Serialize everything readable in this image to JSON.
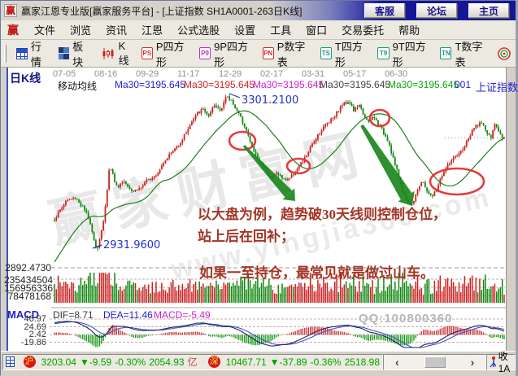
{
  "window": {
    "icon": "赢",
    "title": "赢家江恩专业版[赢家服务平台] - [上证指数  SH1A0001-263日K线]",
    "buttons": [
      "客服",
      "论坛",
      "主页"
    ]
  },
  "menu": {
    "logo": "赢",
    "items": [
      "文件",
      "浏览",
      "资讯",
      "江恩",
      "公式选股",
      "设置",
      "工具",
      "窗口",
      "交易委托",
      "帮助"
    ]
  },
  "toolbar": {
    "items": [
      {
        "icon": "quote-grid",
        "label": "行情"
      },
      {
        "icon": "blocks",
        "label": "板块"
      },
      {
        "icon": "kline",
        "label": "K线"
      },
      {
        "icon": "PS",
        "label": "P四方形",
        "color": "#d03030"
      },
      {
        "icon": "P9",
        "label": "9P四方形",
        "color": "#c030c0"
      },
      {
        "icon": "PN",
        "label": "P数字表",
        "color": "#d03030"
      },
      {
        "icon": "TS",
        "label": "T四方形",
        "color": "#1a9a80"
      },
      {
        "icon": "T9",
        "label": "9T四方形",
        "color": "#1a9a80"
      },
      {
        "icon": "TN",
        "label": "T数字表",
        "color": "#1a9a80"
      }
    ]
  },
  "chart": {
    "panel_label": "日K线",
    "dates": [
      "07-05",
      "08-16",
      "09-29",
      "11-17",
      "12-29",
      "02-17",
      "03-31",
      "05-17",
      "06-30"
    ],
    "ma_row": {
      "label": "移动均线",
      "entries": [
        {
          "text": "Ma30=3195.645",
          "color": "#2222cc"
        },
        {
          "text": "Ma30=3195.645",
          "color": "#cc2222"
        },
        {
          "text": "Ma30=3195.645",
          "color": "#cc22cc"
        },
        {
          "text": "Ma30=3195.645",
          "color": "#444444"
        },
        {
          "text": "Ma30=3195.645",
          "color": "#11a011"
        }
      ],
      "suffix": "001",
      "symbol": "上证指数"
    },
    "labels": {
      "high": "3301.2100",
      "low": "2931.9600",
      "axis_price": "2892.4730",
      "volume": [
        "235434504",
        "156956336",
        "78478168"
      ]
    },
    "annotation": {
      "line1_pre": "以大盘为例，趋势破",
      "line1_bold": "30",
      "line1_post": "天线则控制仓位，",
      "line2": "站上后在回补；",
      "line3": "如果一至持仓，最常见就是做过山车。"
    },
    "watermark": {
      "big": "赢家财富网",
      "site": "www.yingjia360.com",
      "qq": "QQ:100800360"
    }
  },
  "macd": {
    "name": "MACD",
    "dif_label": "DIF=8.71",
    "dea_label": "DEA=11.46",
    "macd_label": "MACD=-5.49",
    "ticks": [
      "46.97",
      "24.69",
      "2.42",
      "-19.86"
    ]
  },
  "statusbar": {
    "sh_icon": "沪",
    "sh_index": "3203.04",
    "sh_change": "▼-9.59",
    "sh_pct": "-0.30%",
    "sh_amount": "2054.93",
    "sh_unit": "亿",
    "sz_icon": "深",
    "sz_index": "10467.71",
    "sz_change": "▼-37.89",
    "sz_pct": "-0.36%",
    "sz_amount": "2518.98",
    "scroll_left": "‹",
    "scroll_right": "›",
    "right_text": "收1A"
  },
  "chart_data": {
    "type": "candlestick",
    "symbol": "上证指数 SH1A0001",
    "period": "日K线 263根",
    "x_axis_dates": [
      "07-05",
      "08-16",
      "09-29",
      "11-17",
      "12-29",
      "02-17",
      "03-31",
      "05-17",
      "06-30"
    ],
    "ma30": 3195.645,
    "marked_high": 3301.21,
    "marked_low": 2931.96,
    "left_axis_price": 2892.473,
    "last_price_line": 3203.04,
    "volume_ticks": [
      235434504,
      156956336,
      78478168
    ],
    "macd_values": {
      "dif": 8.71,
      "dea": 11.46,
      "macd": -5.49,
      "ticks": [
        46.97,
        24.69,
        2.42,
        -19.86
      ]
    },
    "index_quotes": {
      "shanghai": {
        "index": 3203.04,
        "change": -9.59,
        "pct": "-0.30%",
        "amount_yi": 2054.93
      },
      "shenzhen": {
        "index": 10467.71,
        "change": -37.89,
        "pct": "-0.36%",
        "amount_yi": 2518.98
      }
    },
    "price_path_anchors": [
      [
        66,
        3008
      ],
      [
        80,
        3052
      ],
      [
        92,
        3060
      ],
      [
        102,
        3034
      ],
      [
        110,
        3000
      ],
      [
        118,
        2932
      ],
      [
        126,
        2998
      ],
      [
        134,
        3140
      ],
      [
        142,
        3086
      ],
      [
        152,
        3100
      ],
      [
        162,
        3076
      ],
      [
        172,
        3084
      ],
      [
        182,
        3104
      ],
      [
        192,
        3118
      ],
      [
        202,
        3152
      ],
      [
        212,
        3172
      ],
      [
        222,
        3196
      ],
      [
        232,
        3232
      ],
      [
        242,
        3262
      ],
      [
        250,
        3272
      ],
      [
        256,
        3252
      ],
      [
        262,
        3280
      ],
      [
        270,
        3270
      ],
      [
        277,
        3301
      ],
      [
        284,
        3292
      ],
      [
        292,
        3262
      ],
      [
        300,
        3232
      ],
      [
        308,
        3186
      ],
      [
        316,
        3152
      ],
      [
        324,
        3134
      ],
      [
        332,
        3108
      ],
      [
        340,
        3120
      ],
      [
        348,
        3102
      ],
      [
        356,
        3108
      ],
      [
        364,
        3128
      ],
      [
        372,
        3148
      ],
      [
        380,
        3176
      ],
      [
        390,
        3212
      ],
      [
        400,
        3236
      ],
      [
        410,
        3256
      ],
      [
        420,
        3282
      ],
      [
        428,
        3292
      ],
      [
        434,
        3268
      ],
      [
        440,
        3282
      ],
      [
        446,
        3260
      ],
      [
        452,
        3238
      ],
      [
        458,
        3254
      ],
      [
        464,
        3238
      ],
      [
        470,
        3218
      ],
      [
        476,
        3198
      ],
      [
        482,
        3158
      ],
      [
        488,
        3118
      ],
      [
        494,
        3078
      ],
      [
        500,
        3050
      ],
      [
        506,
        3044
      ],
      [
        512,
        3080
      ],
      [
        518,
        3098
      ],
      [
        524,
        3078
      ],
      [
        530,
        3060
      ],
      [
        536,
        3082
      ],
      [
        542,
        3112
      ],
      [
        548,
        3132
      ],
      [
        554,
        3150
      ],
      [
        560,
        3156
      ],
      [
        566,
        3170
      ],
      [
        572,
        3190
      ],
      [
        578,
        3212
      ],
      [
        584,
        3232
      ],
      [
        590,
        3240
      ],
      [
        596,
        3222
      ],
      [
        602,
        3200
      ],
      [
        608,
        3238
      ],
      [
        614,
        3210
      ],
      [
        619,
        3203
      ]
    ],
    "ellipse_marks": [
      [
        297,
        172,
        16,
        11
      ],
      [
        366,
        203,
        14,
        9
      ],
      [
        466,
        144,
        12,
        10
      ],
      [
        561,
        222,
        33,
        16
      ]
    ],
    "arrow_marks": [
      [
        299,
        178,
        362,
        246,
        1.5,
        6,
        12
      ],
      [
        444,
        153,
        506,
        252,
        2,
        8,
        14
      ]
    ]
  }
}
